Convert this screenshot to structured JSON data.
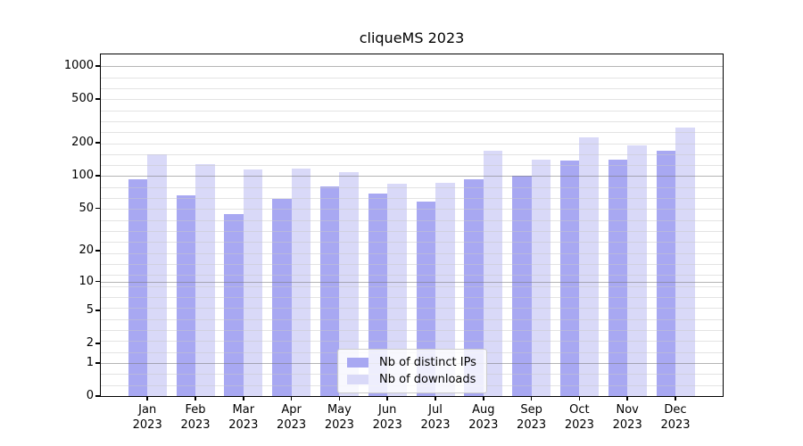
{
  "chart_data": {
    "type": "bar",
    "title": "cliqueMS 2023",
    "categories": [
      "Jan",
      "Feb",
      "Mar",
      "Apr",
      "May",
      "Jun",
      "Jul",
      "Aug",
      "Sep",
      "Oct",
      "Nov",
      "Dec"
    ],
    "category_year": "2023",
    "series": [
      {
        "name": "Nb of distinct IPs",
        "key": "distinct-ips",
        "color": "#a8a8f2",
        "values": [
          93,
          66,
          44,
          61,
          80,
          69,
          58,
          93,
          100,
          137,
          139,
          169
        ]
      },
      {
        "name": "Nb of downloads",
        "key": "downloads",
        "color": "#d9d9f8",
        "values": [
          156,
          128,
          114,
          117,
          107,
          84,
          86,
          169,
          139,
          226,
          191,
          278
        ]
      }
    ],
    "yscale": "log1p",
    "yticks": [
      0,
      1,
      2,
      5,
      10,
      20,
      50,
      100,
      200,
      500,
      1000
    ],
    "ylim": [
      0,
      1285
    ],
    "grid": true,
    "legend_position": "lower center"
  }
}
